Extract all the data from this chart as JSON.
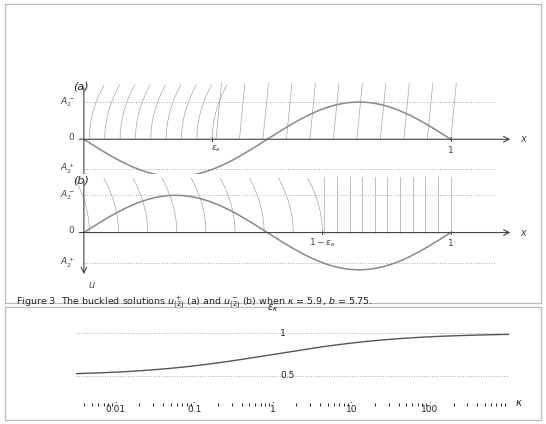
{
  "fig_width": 5.46,
  "fig_height": 4.24,
  "dpi": 100,
  "bg_color": "#ffffff",
  "curve_color": "#888888",
  "line_color": "#888888",
  "dotted_color": "#aaaaaa",
  "axis_color": "#444444",
  "text_color": "#222222",
  "eps_kappa": 0.35,
  "A2_minus": 0.52,
  "A2_plus": -0.42,
  "bottom_curve_color": "#555555",
  "bottom_dotted_color": "#aaaaaa",
  "box_color": "#bbbbbb"
}
